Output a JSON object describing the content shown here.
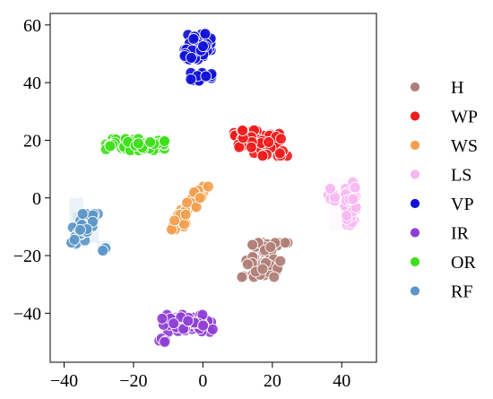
{
  "chart_data": {
    "type": "scatter",
    "title": "",
    "xlabel": "",
    "ylabel": "",
    "xlim": [
      -44,
      50
    ],
    "ylim": [
      -57,
      64
    ],
    "xticks": [
      -40,
      -20,
      0,
      20,
      40
    ],
    "yticks": [
      -40,
      -20,
      0,
      20,
      40,
      60
    ],
    "xtick_labels": [
      "−40",
      "−20",
      "0",
      "20",
      "40"
    ],
    "ytick_labels": [
      "−40",
      "−20",
      "0",
      "20",
      "40",
      "60"
    ],
    "grid": false,
    "legend_position": "right",
    "series": [
      {
        "name": "H",
        "color": "#b07e76",
        "clusters": [
          {
            "cx": 17.5,
            "cy": -21.5,
            "rx": 5.0,
            "ry": 6.0,
            "n": 70,
            "tilt": 0.55
          }
        ]
      },
      {
        "name": "WP",
        "color": "#ee1c1c",
        "clusters": [
          {
            "cx": 16.5,
            "cy": 19.0,
            "rx": 6.5,
            "ry": 4.5,
            "n": 60,
            "tilt": -0.5
          }
        ]
      },
      {
        "name": "WS",
        "color": "#f2a04f",
        "clusters": [
          {
            "cx": -4.0,
            "cy": -3.5,
            "rx": 2.0,
            "ry": 7.5,
            "n": 45,
            "tilt": 0.85
          }
        ]
      },
      {
        "name": "LS",
        "color": "#f7b8f2",
        "clusters": [
          {
            "cx": 42.5,
            "cy": -2.0,
            "rx": 1.6,
            "ry": 7.5,
            "n": 50,
            "tilt": 0.0
          },
          {
            "cx": 37.0,
            "cy": 1.5,
            "rx": 1.0,
            "ry": 2.5,
            "n": 8,
            "tilt": 0.0
          }
        ]
      },
      {
        "name": "VP",
        "color": "#1010d8",
        "clusters": [
          {
            "cx": -1.5,
            "cy": 52.5,
            "rx": 3.8,
            "ry": 4.5,
            "n": 45,
            "tilt": 0.0
          },
          {
            "cx": -0.5,
            "cy": 42.0,
            "rx": 3.0,
            "ry": 1.4,
            "n": 14,
            "tilt": 0.0
          }
        ]
      },
      {
        "name": "IR",
        "color": "#8f3fd6",
        "clusters": [
          {
            "cx": -4.5,
            "cy": -43.5,
            "rx": 7.0,
            "ry": 3.0,
            "n": 60,
            "tilt": -0.3
          },
          {
            "cx": -11.5,
            "cy": -49.5,
            "rx": 1.2,
            "ry": 1.0,
            "n": 5,
            "tilt": 0.0
          }
        ]
      },
      {
        "name": "OR",
        "color": "#3ee01a",
        "clusters": [
          {
            "cx": -19.5,
            "cy": 18.5,
            "rx": 8.5,
            "ry": 2.0,
            "n": 70,
            "tilt": 0.0
          }
        ]
      },
      {
        "name": "RF",
        "color": "#5b96c8",
        "clusters": [
          {
            "cx": -35.0,
            "cy": -11.0,
            "rx": 2.8,
            "ry": 5.5,
            "n": 45,
            "tilt": 0.6
          },
          {
            "cx": -28.5,
            "cy": -17.5,
            "rx": 1.0,
            "ry": 0.8,
            "n": 6,
            "tilt": 0.0
          }
        ]
      }
    ],
    "cluster_tints": [
      {
        "color": "#0a7fa8",
        "x0": -38.5,
        "x1": -34.5,
        "y0": 0.0,
        "y1": -8.0
      },
      {
        "color": "#0a7fa8",
        "x0": -37.5,
        "x1": -30.0,
        "y0": -5.0,
        "y1": -15.5
      },
      {
        "color": "#0a7fa8",
        "x0": -30.5,
        "x1": -26.5,
        "y0": -15.0,
        "y1": -19.5
      },
      {
        "color": "#f6b7f0",
        "x0": 36.5,
        "x1": 45.5,
        "y0": 7.0,
        "y1": -11.0
      }
    ]
  }
}
